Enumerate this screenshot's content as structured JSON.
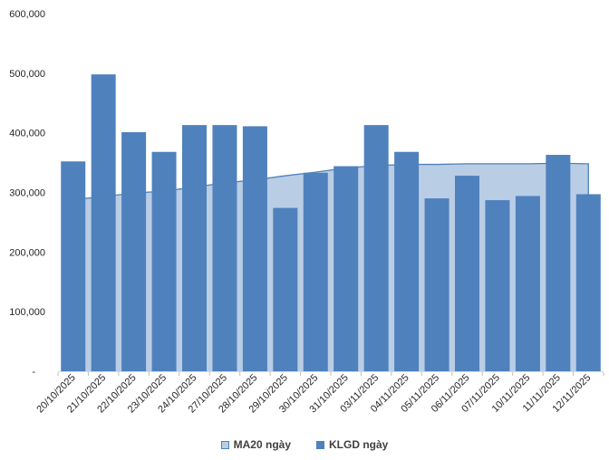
{
  "chart_data": {
    "type": "bar",
    "title": "",
    "xlabel": "",
    "ylabel": "",
    "categories": [
      "20/10/2025",
      "21/10/2025",
      "22/10/2025",
      "23/10/2025",
      "24/10/2025",
      "27/10/2025",
      "28/10/2025",
      "29/10/2025",
      "30/10/2025",
      "31/10/2025",
      "03/11/2025",
      "04/11/2025",
      "05/11/2025",
      "06/11/2025",
      "07/11/2025",
      "10/11/2025",
      "11/11/2025",
      "12/11/2025"
    ],
    "series": [
      {
        "name": "MA20 ngày",
        "type": "area",
        "fill": "#B9CDE5",
        "line": "#4F81BD",
        "values": [
          288000,
          293000,
          299000,
          302000,
          309000,
          316000,
          321000,
          328000,
          334000,
          341000,
          345000,
          347000,
          347000,
          348000,
          348000,
          348000,
          349000,
          348000
        ]
      },
      {
        "name": "KLGD ngày",
        "type": "bar",
        "color": "#4F81BD",
        "values": [
          352000,
          498000,
          401000,
          368000,
          413000,
          413000,
          411000,
          274000,
          333000,
          344000,
          413000,
          368000,
          290000,
          328000,
          287000,
          294000,
          363000,
          297000
        ]
      }
    ],
    "ylim": [
      0,
      600000
    ],
    "ytick_step": 100000,
    "ytick_labels": [
      "-",
      "100,000",
      "200,000",
      "300,000",
      "400,000",
      "500,000",
      "600,000"
    ],
    "grid": false,
    "legend_position": "bottom-center",
    "x_label_rotation_deg": -45
  },
  "legend": {
    "items": [
      {
        "label": "MA20 ngày",
        "fill": "#B9CDE5",
        "border": "#4F81BD"
      },
      {
        "label": "KLGD ngày",
        "fill": "#4F81BD",
        "border": "#4F81BD"
      }
    ]
  },
  "axis": {
    "text_color": "#262626",
    "tick_color": "#BFBFBF",
    "line_color": "#D9D9D9"
  }
}
